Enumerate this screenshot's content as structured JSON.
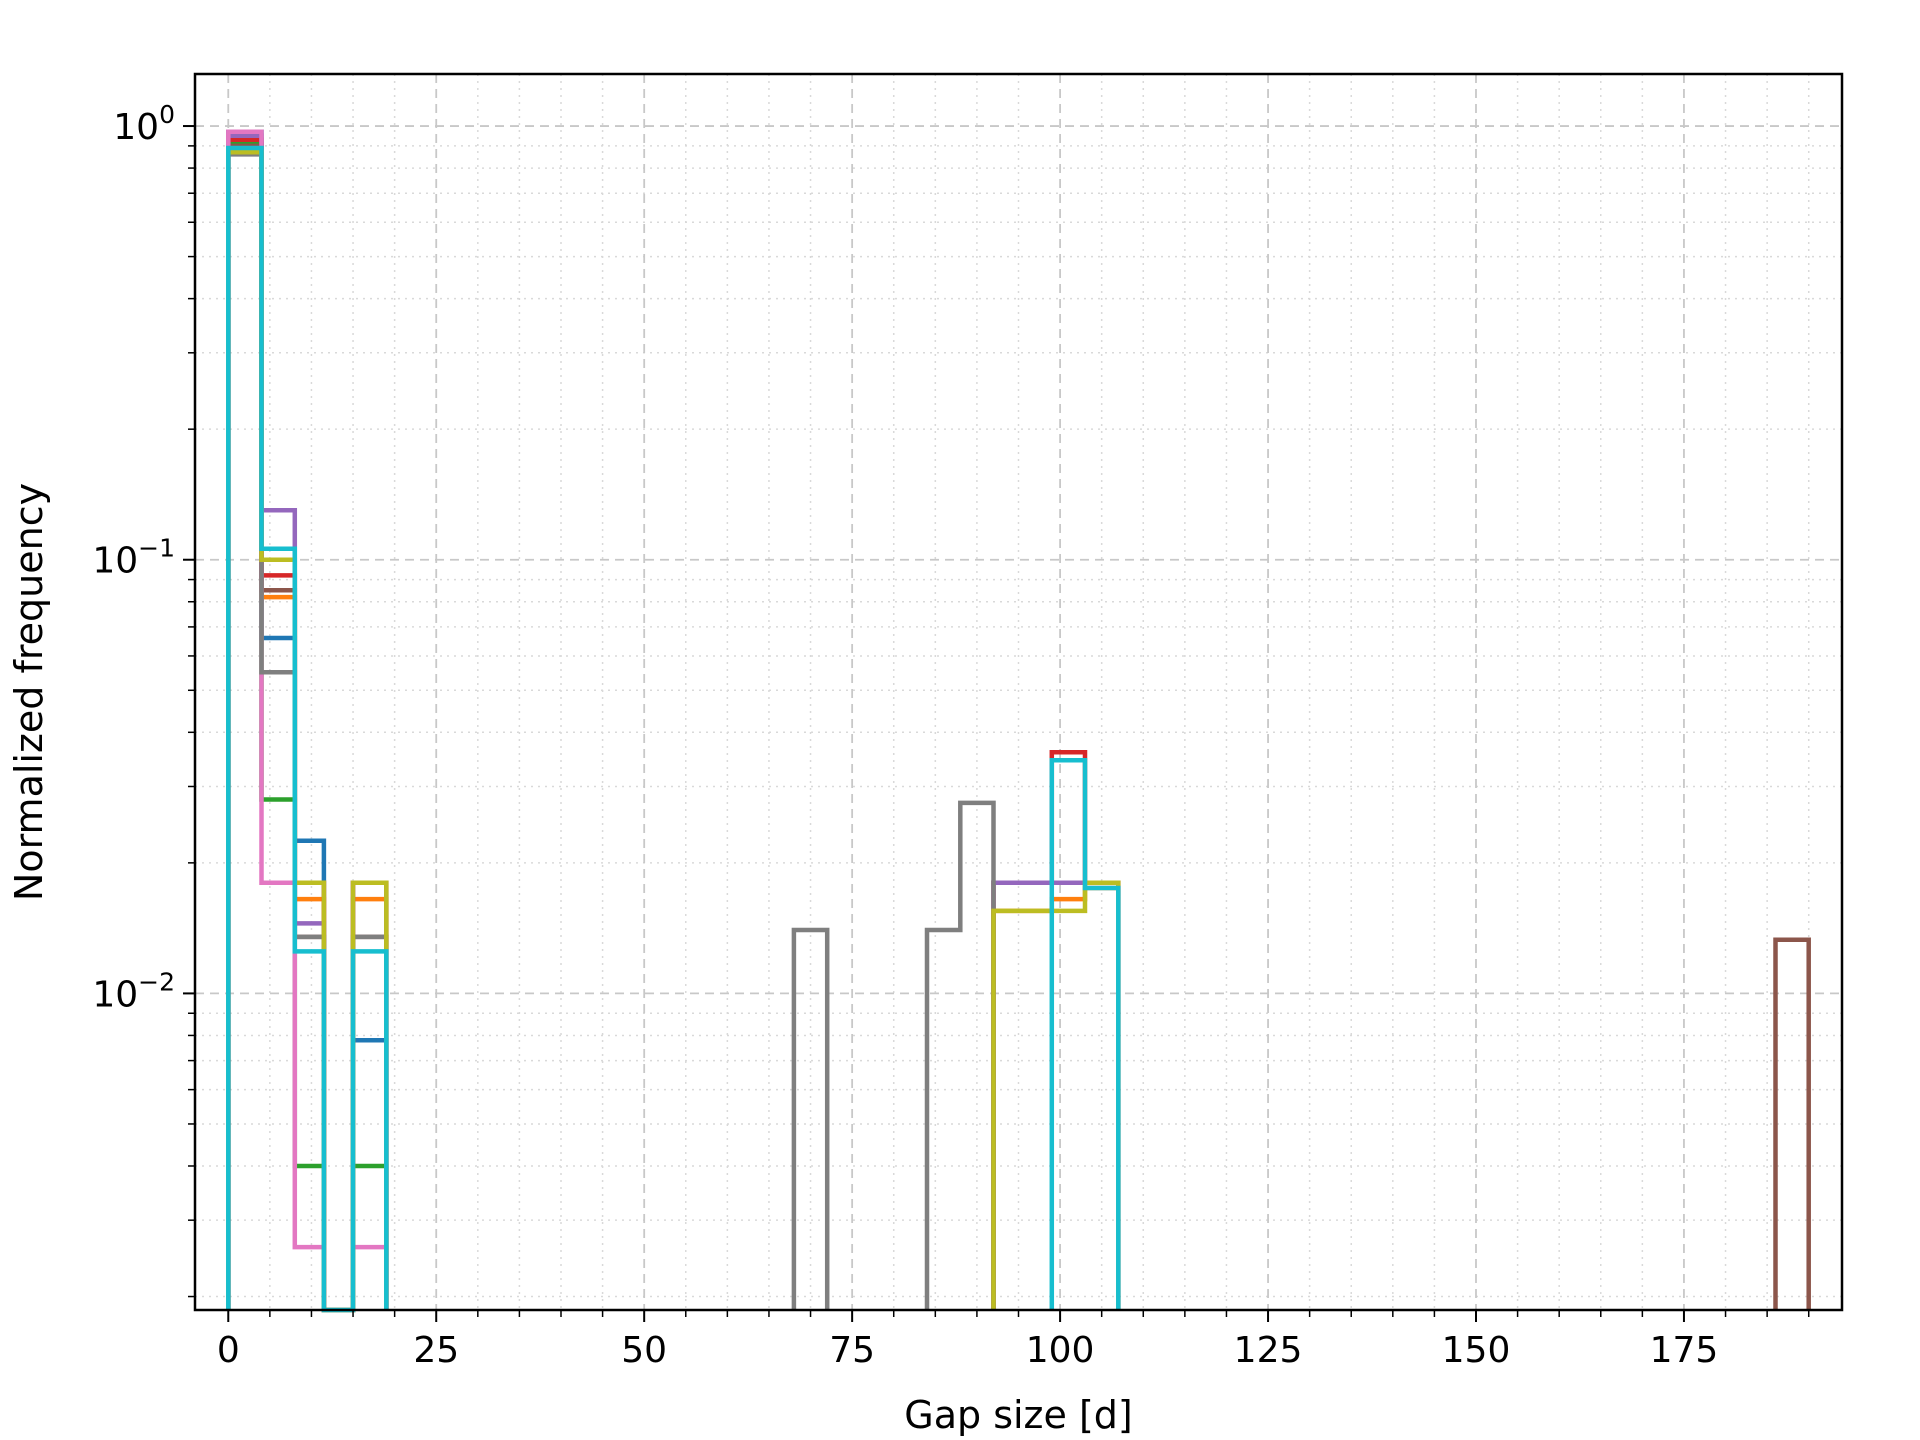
{
  "chart_data": {
    "type": "histogram",
    "xlabel": "Gap size [d]",
    "ylabel": "Normalized frequency",
    "xlim": [
      -4,
      194
    ],
    "ylim_log10": [
      -2.73,
      0.12
    ],
    "yscale": "log",
    "grid": {
      "major": "dashed",
      "minor": "dotted"
    },
    "x_ticks": [
      0,
      25,
      50,
      75,
      100,
      125,
      150,
      175
    ],
    "x_tick_labels": [
      "0",
      "25",
      "50",
      "75",
      "100",
      "125",
      "150",
      "175"
    ],
    "y_ticks": [
      {
        "base": "10",
        "exp": "0",
        "value": 1
      },
      {
        "base": "10",
        "exp": "−1",
        "value": 0.1
      },
      {
        "base": "10",
        "exp": "−2",
        "value": 0.01
      }
    ],
    "series": [
      {
        "color": "#1f77b4",
        "bins": [
          [
            0,
            4,
            0.97
          ],
          [
            4,
            8,
            0.066
          ],
          [
            8,
            11.5,
            0.0225
          ],
          [
            11.5,
            15,
            0
          ],
          [
            15,
            19,
            0.0078
          ]
        ]
      },
      {
        "color": "#ff7f0e",
        "bins": [
          [
            0,
            4,
            0.88
          ],
          [
            4,
            8,
            0.082
          ],
          [
            8,
            11.5,
            0.0165
          ],
          [
            11.5,
            15,
            0
          ],
          [
            15,
            19,
            0.0165
          ],
          [
            92,
            99,
            0.0155
          ],
          [
            99,
            103,
            0.0165
          ],
          [
            103,
            107,
            0.0175
          ]
        ]
      },
      {
        "color": "#2ca02c",
        "bins": [
          [
            0,
            4,
            0.91
          ],
          [
            4,
            8,
            0.028
          ],
          [
            8,
            11.5,
            0.004
          ],
          [
            11.5,
            15,
            0
          ],
          [
            15,
            19,
            0.004
          ]
        ]
      },
      {
        "color": "#d62728",
        "bins": [
          [
            0,
            4,
            0.93
          ],
          [
            4,
            8,
            0.092
          ],
          [
            8,
            11.5,
            0.018
          ],
          [
            11.5,
            15,
            0
          ],
          [
            15,
            19,
            0.018
          ],
          [
            92,
            99,
            0.018
          ],
          [
            99,
            103,
            0.036
          ],
          [
            103,
            107,
            0.018
          ]
        ]
      },
      {
        "color": "#9467bd",
        "bins": [
          [
            0,
            4,
            0.95
          ],
          [
            4,
            8,
            0.13
          ],
          [
            8,
            11.5,
            0.0145
          ],
          [
            11.5,
            15,
            0
          ],
          [
            15,
            19,
            0.018
          ],
          [
            92,
            99,
            0.018
          ],
          [
            99,
            103,
            0.018
          ],
          [
            103,
            107,
            0.018
          ]
        ]
      },
      {
        "color": "#8c564b",
        "bins": [
          [
            0,
            4,
            0.9
          ],
          [
            4,
            8,
            0.085
          ],
          [
            8,
            11.5,
            0.0135
          ],
          [
            11.5,
            15,
            0
          ],
          [
            15,
            19,
            0.0135
          ],
          [
            186,
            190,
            0.0133
          ]
        ]
      },
      {
        "color": "#e377c2",
        "bins": [
          [
            0,
            4,
            0.97
          ],
          [
            4,
            8,
            0.018
          ],
          [
            8,
            11.5,
            0.0026
          ],
          [
            11.5,
            15,
            0
          ],
          [
            15,
            19,
            0.0026
          ]
        ]
      },
      {
        "color": "#7f7f7f",
        "bins": [
          [
            0,
            4,
            0.86
          ],
          [
            4,
            8,
            0.055
          ],
          [
            8,
            11.5,
            0.0135
          ],
          [
            11.5,
            15,
            0
          ],
          [
            15,
            19,
            0.0135
          ],
          [
            68,
            72,
            0.014
          ],
          [
            84,
            88,
            0.014
          ],
          [
            88,
            92,
            0.0275
          ]
        ]
      },
      {
        "color": "#bcbd22",
        "bins": [
          [
            0,
            4,
            0.87
          ],
          [
            4,
            8,
            0.1
          ],
          [
            8,
            11.5,
            0.018
          ],
          [
            11.5,
            15,
            0
          ],
          [
            15,
            19,
            0.018
          ],
          [
            92,
            99,
            0.0155
          ],
          [
            99,
            103,
            0.0155
          ],
          [
            103,
            107,
            0.018
          ]
        ]
      },
      {
        "color": "#17becf",
        "bins": [
          [
            0,
            4,
            0.89
          ],
          [
            4,
            8,
            0.106
          ],
          [
            8,
            11.5,
            0.0125
          ],
          [
            11.5,
            15,
            0
          ],
          [
            15,
            19,
            0.0125
          ],
          [
            99,
            103,
            0.0345
          ],
          [
            103,
            107,
            0.0175
          ]
        ]
      }
    ]
  }
}
